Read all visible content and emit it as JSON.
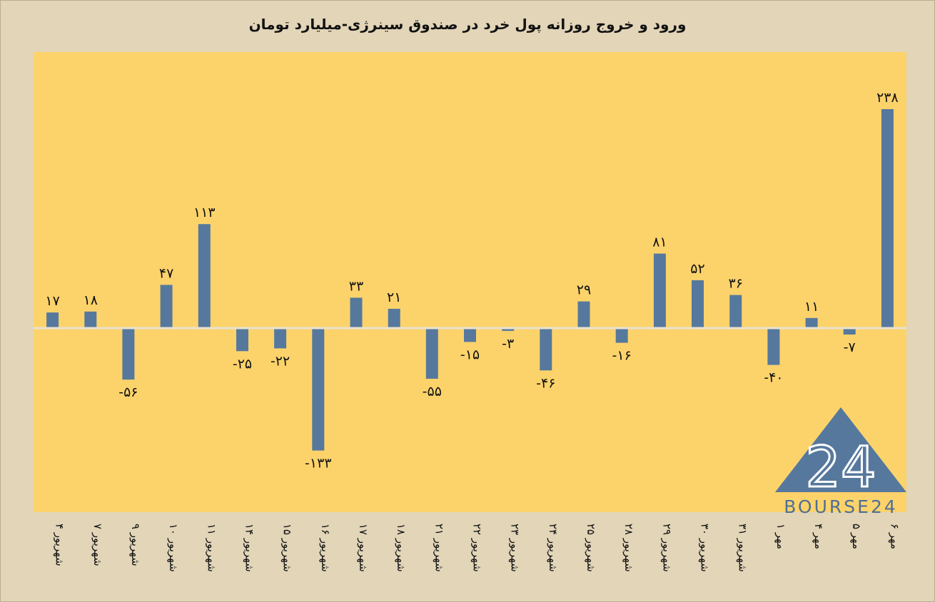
{
  "chart_data": {
    "type": "bar",
    "title": "ورود و خروج روزانه پول خرد در صندوق سینرژی-میلیارد تومان",
    "xlabel": "",
    "ylabel": "",
    "categories": [
      "۴ شهریور",
      "۷ شهریور",
      "۹ شهریور",
      "۱۰ شهریور",
      "۱۱ شهریور",
      "۱۴ شهریور",
      "۱۵ شهریور",
      "۱۶ شهریور",
      "۱۷ شهریور",
      "۱۸ شهریور",
      "۲۱ شهریور",
      "۲۲ شهریور",
      "۲۳ شهریور",
      "۲۴ شهریور",
      "۲۵ شهریور",
      "۲۸ شهریور",
      "۲۹ شهریور",
      "۳۰ شهریور",
      "۳۱ شهریور",
      "۱ مهر",
      "۴ مهر",
      "۵ مهر",
      "۶ مهر"
    ],
    "values": [
      17,
      18,
      -56,
      47,
      113,
      -25,
      -22,
      -133,
      33,
      21,
      -55,
      -15,
      -3,
      -46,
      29,
      -16,
      81,
      52,
      36,
      -40,
      11,
      -7,
      238
    ],
    "value_labels": [
      "۱۷",
      "۱۸",
      "-۵۶",
      "۴۷",
      "۱۱۳",
      "-۲۵",
      "-۲۲",
      "-۱۳۳",
      "۳۳",
      "۲۱",
      "-۵۵",
      "-۱۵",
      "-۳",
      "-۴۶",
      "۲۹",
      "-۱۶",
      "۸۱",
      "۵۲",
      "۳۶",
      "-۴۰",
      "۱۱",
      "-۷",
      "۲۳۸"
    ],
    "ylim": [
      -200,
      270
    ],
    "grid": false,
    "legend": "none",
    "colors": {
      "bar": "#56789d",
      "plot_bg": "#fcd36b",
      "page_bg": "#e2d5b8",
      "zero_line": "#e9e2d0"
    }
  },
  "logo": {
    "numeral": "24",
    "text": "BOURSE24",
    "color": "#4f6f94"
  }
}
